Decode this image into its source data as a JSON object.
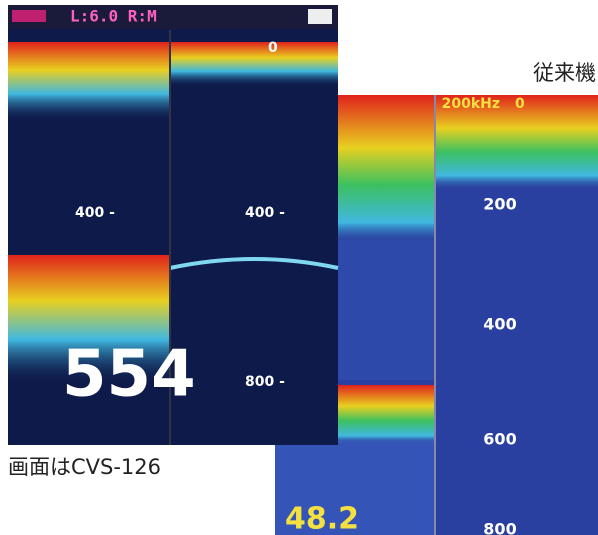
{
  "caption_right": "従来機",
  "caption_left": "画面はCVS-126",
  "left_screen": {
    "header": "L:6.0 R:M",
    "top_scale": "0",
    "left_label": "400 -",
    "right_labels": [
      "400 -",
      "800 -"
    ],
    "depth_readout": "554"
  },
  "right_screen": {
    "header": "200kHz",
    "top_scale": "0",
    "scale_labels": [
      "200",
      "400",
      "600",
      "800"
    ],
    "depth_readout": "48.2"
  }
}
